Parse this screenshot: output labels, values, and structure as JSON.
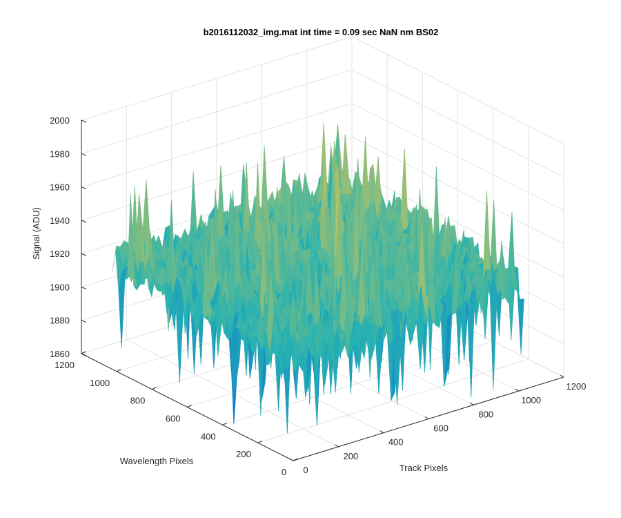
{
  "chart_data": {
    "type": "surface",
    "title": "b2016112032_img.mat int time = 0.09 sec  NaN nm BS02",
    "xlabel": "Track Pixels",
    "ylabel": "Wavelength Pixels",
    "zlabel": "Signal (ADU)",
    "xlim": [
      0,
      1200
    ],
    "ylim": [
      0,
      1200
    ],
    "zlim": [
      1860,
      2000
    ],
    "xticks": [
      "0",
      "200",
      "400",
      "600",
      "800",
      "1000",
      "1200"
    ],
    "yticks": [
      "0",
      "200",
      "400",
      "600",
      "800",
      "1000",
      "1200"
    ],
    "zticks": [
      "1860",
      "1880",
      "1900",
      "1920",
      "1940",
      "1960",
      "1980",
      "2000"
    ],
    "grid": true,
    "colormap": "parula",
    "surface_summary": {
      "x_extent": [
        0,
        1024
      ],
      "y_extent": [
        0,
        1024
      ],
      "mean_signal": 1925,
      "peak_signal_near": 1975,
      "dip_signal_near": 1872
    }
  },
  "colors": {
    "axis": "#262626",
    "grid": "#e2e2e2",
    "surface_low": "#0b68d6",
    "surface_mid": "#26b2b2",
    "surface_high": "#e7c84a"
  }
}
